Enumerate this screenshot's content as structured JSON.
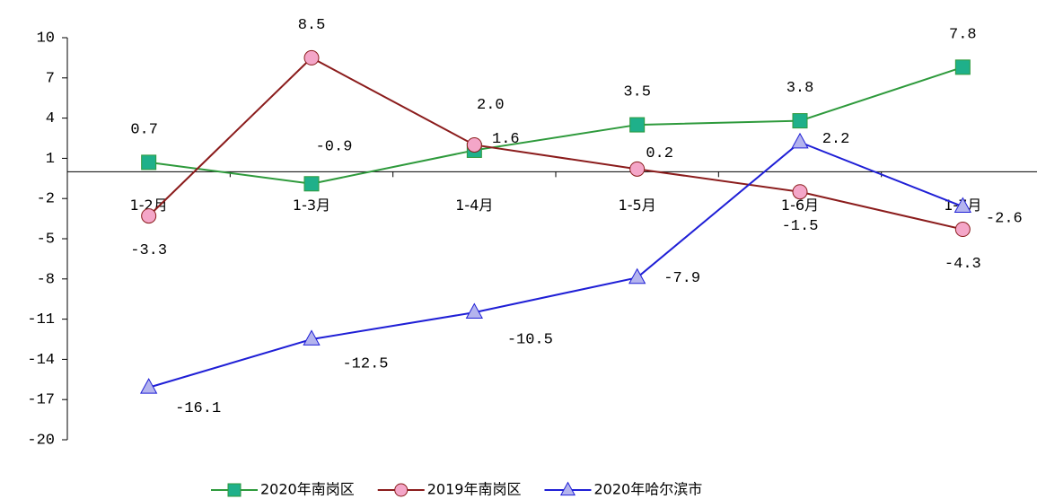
{
  "chart_data": {
    "type": "line",
    "categories": [
      "1-2月",
      "1-3月",
      "1-4月",
      "1-5月",
      "1-6月",
      "1-7月"
    ],
    "series": [
      {
        "name": "2020年南岗区",
        "color": "#2e9a3c",
        "marker": "square",
        "marker_color": "#1fb08a",
        "values": [
          0.7,
          -0.9,
          1.6,
          3.5,
          3.8,
          7.8
        ],
        "value_labels": [
          "0.7",
          "-0.9",
          "1.6",
          "3.5",
          "3.8",
          "7.8"
        ]
      },
      {
        "name": "2019年南岗区",
        "color": "#8b1c1c",
        "marker": "circle",
        "marker_color": "#f4a6c8",
        "values": [
          -3.3,
          8.5,
          2.0,
          0.2,
          -1.5,
          -4.3
        ],
        "value_labels": [
          "-3.3",
          "8.5",
          "2.0",
          "0.2",
          "-1.5",
          "-4.3"
        ]
      },
      {
        "name": "2020年哈尔滨市",
        "color": "#1f1fd6",
        "marker": "triangle",
        "marker_color": "#b4b4ee",
        "values": [
          -16.1,
          -12.5,
          -10.5,
          -7.9,
          2.2,
          -2.6
        ],
        "value_labels": [
          "-16.1",
          "-12.5",
          "-10.5",
          "-7.9",
          "2.2",
          "-2.6"
        ]
      }
    ],
    "ylim": [
      -20,
      10
    ],
    "yticks": [
      10,
      7,
      4,
      1,
      -2,
      -5,
      -8,
      -11,
      -14,
      -17,
      -20
    ],
    "legend": "bottom"
  }
}
